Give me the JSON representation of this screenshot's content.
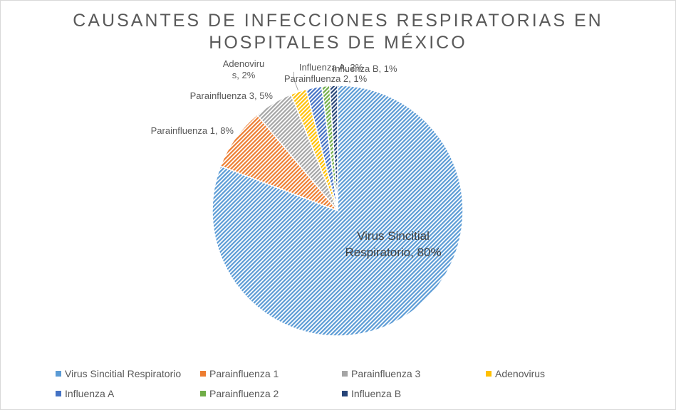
{
  "chart_data": {
    "type": "pie",
    "title": "CAUSANTES DE INFECCIONES RESPIRATORIAS EN HOSPITALES DE MÉXICO",
    "title_lines": [
      "CAUSANTES DE INFECCIONES RESPIRATORIAS EN",
      "HOSPITALES DE MÉXICO"
    ],
    "series": [
      {
        "values": [
          80,
          8,
          5,
          2,
          2,
          1,
          1
        ]
      }
    ],
    "categories": [
      "Virus Sincitial Respiratorio",
      "Parainfluenza 1",
      "Parainfluenza 3",
      "Adenovirus",
      "Influenza A",
      "Parainfluenza 2",
      "Influenza B"
    ],
    "data_labels": [
      [
        "Virus Sincitial",
        "Respiratorio, 80%"
      ],
      [
        "Parainfluenza 1, 8%"
      ],
      [
        "Parainfluenza 3, 5%"
      ],
      [
        "Adenoviru",
        "s, 2%"
      ],
      [
        "Influenza A, 2%"
      ],
      [
        "Parainfluenza 2, 1%"
      ],
      [
        "Influenza B, 1%"
      ]
    ],
    "colors": [
      "#5b9bd5",
      "#ed7d31",
      "#a5a5a5",
      "#ffc000",
      "#4472c4",
      "#70ad47",
      "#264478"
    ],
    "legend_position": "bottom",
    "fill_pattern": "diagonal-hatch"
  }
}
